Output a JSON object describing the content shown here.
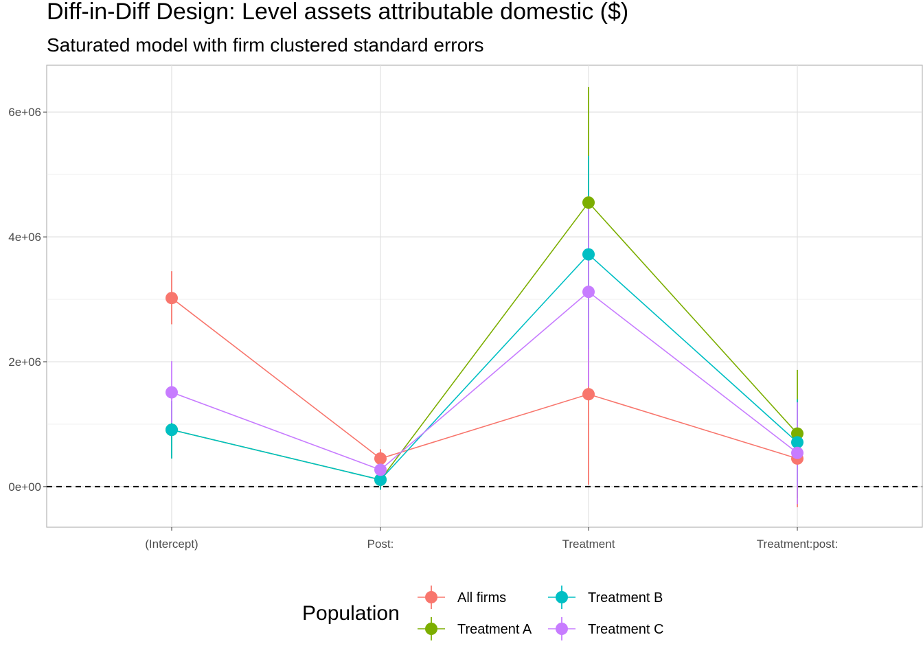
{
  "chart_data": {
    "type": "line",
    "title": "Diff-in-Diff Design: Level assets attributable domestic  ($)",
    "subtitle": "Saturated model with firm clustered standard errors",
    "xlabel": "",
    "ylabel": "",
    "categories": [
      "(Intercept)",
      "Post:",
      "Treatment",
      "Treatment:post:"
    ],
    "y_ticks": [
      0,
      2000000,
      4000000,
      6000000
    ],
    "y_tick_labels": [
      "0e+00",
      "2e+06",
      "4e+06",
      "6e+06"
    ],
    "ylim": [
      -650000,
      6750000
    ],
    "reference_line": {
      "y": 0,
      "style": "dashed"
    },
    "grid": true,
    "legend": {
      "title": "Population",
      "position": "bottom"
    },
    "series": [
      {
        "name": "All firms",
        "color": "#F8766D",
        "values": [
          3020000,
          450000,
          1480000,
          450000
        ],
        "lower": [
          2600000,
          280000,
          30000,
          -330000
        ],
        "upper": [
          3450000,
          600000,
          2900000,
          1250000
        ]
      },
      {
        "name": "Treatment A",
        "color": "#7CAE00",
        "values": [
          910000,
          110000,
          4550000,
          850000
        ],
        "lower": [
          450000,
          -50000,
          2700000,
          -180000
        ],
        "upper": [
          1370000,
          270000,
          6400000,
          1870000
        ]
      },
      {
        "name": "Treatment B",
        "color": "#00BFC4",
        "values": [
          910000,
          110000,
          3720000,
          710000
        ],
        "lower": [
          450000,
          -50000,
          2200000,
          20000
        ],
        "upper": [
          1370000,
          270000,
          5300000,
          1400000
        ]
      },
      {
        "name": "Treatment C",
        "color": "#C77CFF",
        "values": [
          1510000,
          270000,
          3120000,
          540000
        ],
        "lower": [
          1020000,
          80000,
          1600000,
          -280000
        ],
        "upper": [
          2010000,
          460000,
          4650000,
          1350000
        ]
      }
    ]
  }
}
